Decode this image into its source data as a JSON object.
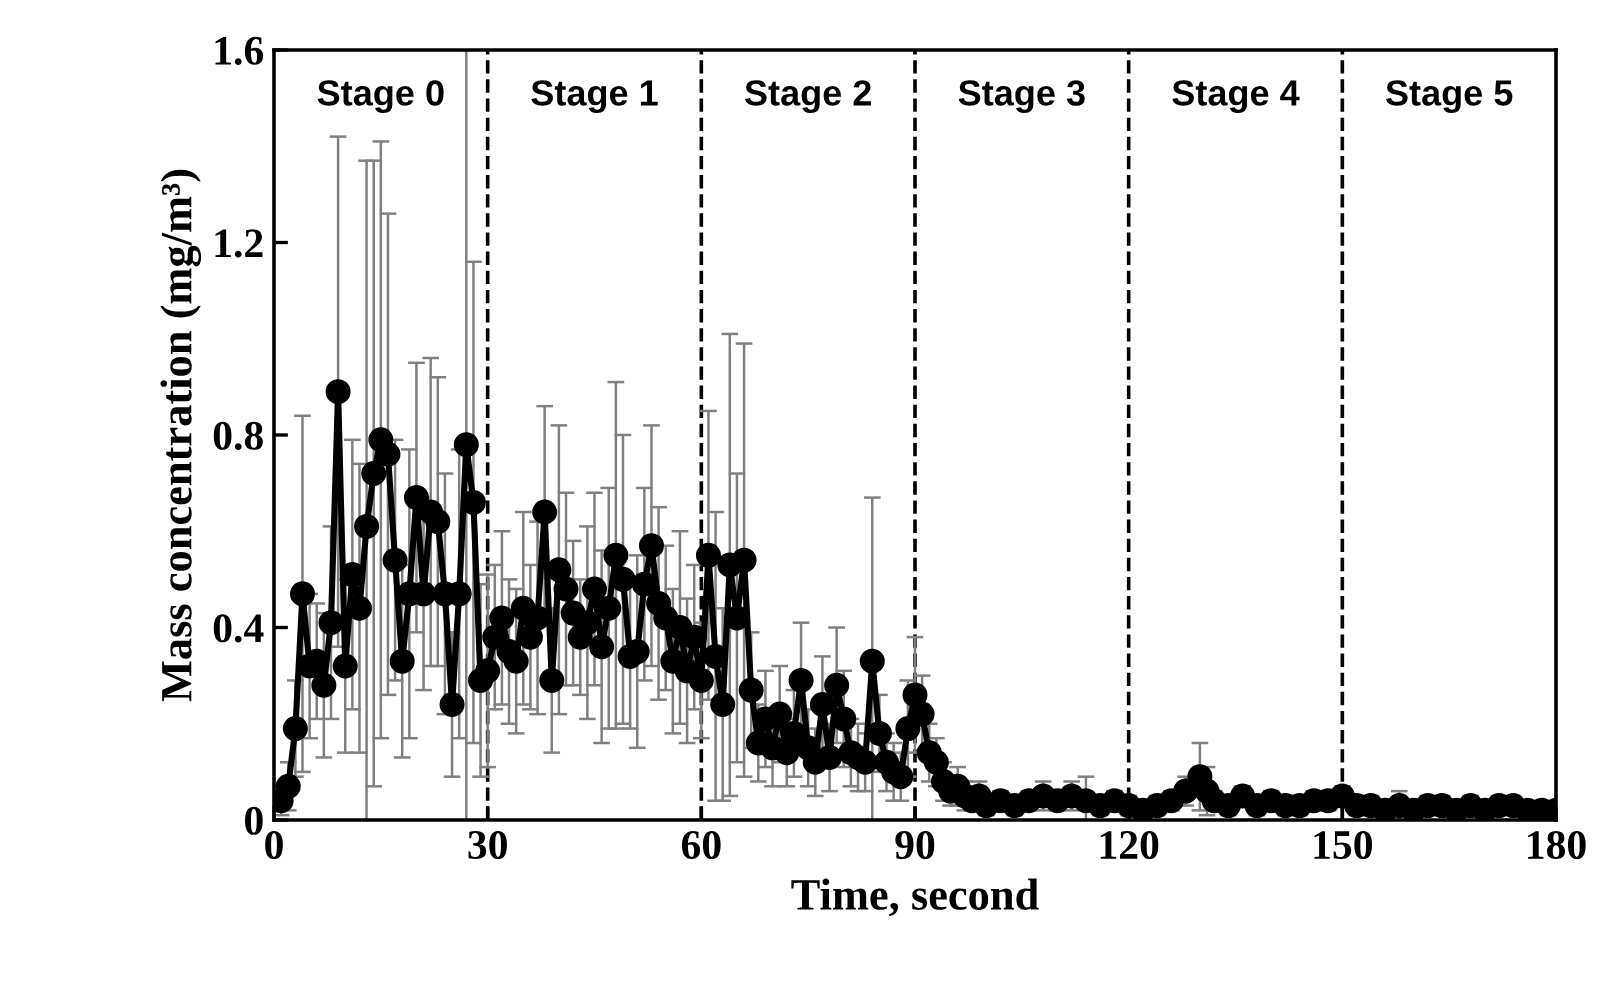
{
  "chart_data": {
    "type": "line",
    "xlabel": "Time, second",
    "ylabel": "Mass concentration (mg/m³)",
    "xlim": [
      0,
      180
    ],
    "xticks": [
      0,
      30,
      60,
      90,
      120,
      150,
      180
    ],
    "ylim": [
      0,
      1.6
    ],
    "yticks": [
      0,
      0.4,
      0.8,
      1.2,
      1.6
    ],
    "marker": "circle",
    "line_style": "solid",
    "grid": false,
    "legend": false,
    "x": [
      1,
      2,
      3,
      4,
      5,
      6,
      7,
      8,
      9,
      10,
      11,
      12,
      13,
      14,
      15,
      16,
      17,
      18,
      19,
      20,
      21,
      22,
      23,
      24,
      25,
      26,
      27,
      28,
      29,
      30,
      31,
      32,
      33,
      34,
      35,
      36,
      37,
      38,
      39,
      40,
      41,
      42,
      43,
      44,
      45,
      46,
      47,
      48,
      49,
      50,
      51,
      52,
      53,
      54,
      55,
      56,
      57,
      58,
      59,
      60,
      61,
      62,
      63,
      64,
      65,
      66,
      67,
      68,
      69,
      70,
      71,
      72,
      73,
      74,
      75,
      76,
      77,
      78,
      79,
      80,
      81,
      82,
      83,
      84,
      85,
      86,
      87,
      88,
      89,
      90,
      91,
      92,
      93,
      94,
      95,
      96,
      97,
      98,
      99,
      100,
      102,
      104,
      106,
      108,
      110,
      112,
      114,
      116,
      118,
      120,
      122,
      124,
      126,
      128,
      130,
      131,
      132,
      134,
      136,
      138,
      140,
      142,
      144,
      146,
      148,
      150,
      152,
      154,
      156,
      158,
      160,
      162,
      164,
      166,
      168,
      170,
      172,
      174,
      176,
      178,
      180
    ],
    "series": [
      {
        "color": "#000000",
        "values": [
          0.04,
          0.07,
          0.19,
          0.47,
          0.32,
          0.33,
          0.28,
          0.41,
          0.89,
          0.32,
          0.51,
          0.44,
          0.61,
          0.72,
          0.79,
          0.76,
          0.54,
          0.33,
          0.47,
          0.67,
          0.47,
          0.64,
          0.62,
          0.47,
          0.24,
          0.47,
          0.78,
          0.66,
          0.29,
          0.31,
          0.38,
          0.42,
          0.35,
          0.33,
          0.44,
          0.38,
          0.42,
          0.64,
          0.29,
          0.52,
          0.48,
          0.43,
          0.38,
          0.41,
          0.48,
          0.36,
          0.44,
          0.55,
          0.5,
          0.34,
          0.35,
          0.49,
          0.57,
          0.45,
          0.42,
          0.33,
          0.4,
          0.31,
          0.38,
          0.29,
          0.55,
          0.34,
          0.24,
          0.53,
          0.42,
          0.54,
          0.27,
          0.16,
          0.21,
          0.15,
          0.22,
          0.14,
          0.18,
          0.29,
          0.15,
          0.12,
          0.24,
          0.13,
          0.28,
          0.21,
          0.14,
          0.13,
          0.12,
          0.33,
          0.18,
          0.12,
          0.1,
          0.09,
          0.19,
          0.26,
          0.22,
          0.14,
          0.12,
          0.08,
          0.06,
          0.07,
          0.05,
          0.04,
          0.05,
          0.03,
          0.04,
          0.03,
          0.04,
          0.05,
          0.04,
          0.05,
          0.04,
          0.03,
          0.04,
          0.03,
          0.02,
          0.03,
          0.04,
          0.06,
          0.09,
          0.06,
          0.04,
          0.03,
          0.05,
          0.03,
          0.04,
          0.03,
          0.03,
          0.04,
          0.04,
          0.05,
          0.03,
          0.03,
          0.02,
          0.03,
          0.02,
          0.03,
          0.03,
          0.02,
          0.03,
          0.02,
          0.03,
          0.03,
          0.02,
          0.02,
          0.02
        ],
        "errors": [
          0.03,
          0.05,
          0.1,
          0.37,
          0.15,
          0.12,
          0.15,
          0.2,
          0.53,
          0.18,
          0.28,
          0.3,
          0.76,
          0.65,
          0.62,
          0.5,
          0.25,
          0.2,
          0.3,
          0.28,
          0.2,
          0.32,
          0.3,
          0.25,
          0.15,
          0.3,
          0.82,
          0.5,
          0.2,
          0.2,
          0.15,
          0.18,
          0.15,
          0.15,
          0.2,
          0.15,
          0.2,
          0.22,
          0.15,
          0.3,
          0.2,
          0.15,
          0.12,
          0.2,
          0.2,
          0.2,
          0.25,
          0.36,
          0.3,
          0.15,
          0.2,
          0.2,
          0.25,
          0.2,
          0.15,
          0.15,
          0.2,
          0.15,
          0.15,
          0.12,
          0.3,
          0.3,
          0.2,
          0.48,
          0.3,
          0.45,
          0.12,
          0.08,
          0.1,
          0.08,
          0.1,
          0.07,
          0.09,
          0.12,
          0.08,
          0.07,
          0.1,
          0.07,
          0.12,
          0.1,
          0.07,
          0.07,
          0.06,
          0.34,
          0.08,
          0.06,
          0.06,
          0.05,
          0.1,
          0.12,
          0.08,
          0.06,
          0.05,
          0.04,
          0.03,
          0.04,
          0.03,
          0.02,
          0.03,
          0.02,
          0.02,
          0.02,
          0.02,
          0.03,
          0.02,
          0.03,
          0.05,
          0.02,
          0.02,
          0.02,
          0.01,
          0.02,
          0.02,
          0.03,
          0.07,
          0.05,
          0.02,
          0.02,
          0.02,
          0.02,
          0.02,
          0.02,
          0.02,
          0.02,
          0.02,
          0.02,
          0.02,
          0.02,
          0.01,
          0.03,
          0.01,
          0.02,
          0.02,
          0.01,
          0.02,
          0.01,
          0.02,
          0.01,
          0.01,
          0.01,
          0.01
        ]
      }
    ],
    "ref_lines": [
      {
        "axis": "x",
        "value": 30,
        "line_style": "dashed",
        "color": "#000000"
      },
      {
        "axis": "x",
        "value": 60,
        "line_style": "dashed",
        "color": "#000000"
      },
      {
        "axis": "x",
        "value": 90,
        "line_style": "dashed",
        "color": "#000000"
      },
      {
        "axis": "x",
        "value": 120,
        "line_style": "dashed",
        "color": "#000000"
      },
      {
        "axis": "x",
        "value": 150,
        "line_style": "dashed",
        "color": "#000000"
      }
    ],
    "annotations": [
      "Stage 0",
      "Stage 1",
      "Stage 2",
      "Stage 3",
      "Stage 4",
      "Stage 5"
    ]
  }
}
